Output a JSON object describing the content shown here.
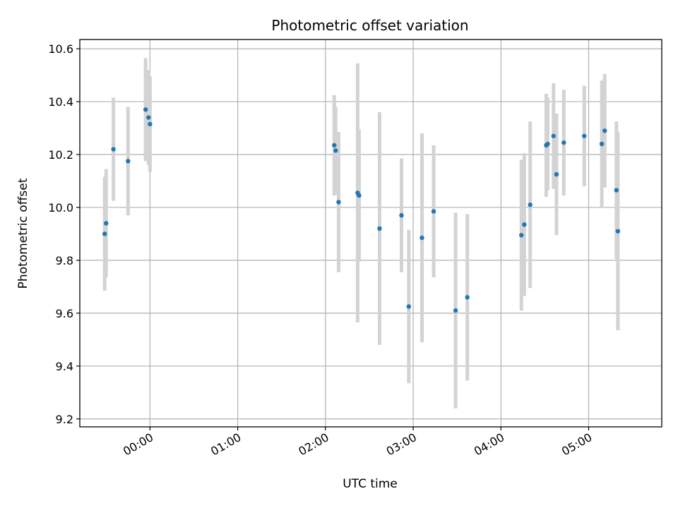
{
  "chart_data": {
    "type": "scatter",
    "title": "Photometric offset variation",
    "xlabel": "UTC time",
    "ylabel": "Photometric offset",
    "xlim": [
      "23:12",
      "05:50"
    ],
    "ylim": [
      9.17,
      10.635
    ],
    "xticks": [
      "00:00",
      "01:00",
      "02:00",
      "03:00",
      "04:00",
      "05:00"
    ],
    "yticks": [
      9.2,
      9.4,
      9.6,
      9.8,
      10.0,
      10.2,
      10.4,
      10.6
    ],
    "grid": true,
    "legend": "none",
    "colors": {
      "points": "#1f77b4",
      "errorbars": "#d3d3d3",
      "grid": "#b0b0b0"
    },
    "series": [
      {
        "x": [
          "23:29",
          "23:30",
          "23:35",
          "23:45",
          "23:57",
          "23:59",
          "00:00",
          "02:06",
          "02:07",
          "02:09",
          "02:22",
          "02:23",
          "02:37",
          "02:52",
          "02:57",
          "03:06",
          "03:14",
          "03:29",
          "03:37",
          "04:14",
          "04:16",
          "04:20",
          "04:31",
          "04:32",
          "04:36",
          "04:38",
          "04:43",
          "04:57",
          "05:09",
          "05:11",
          "05:19",
          "05:20"
        ],
        "y": [
          9.9,
          9.94,
          10.22,
          10.175,
          10.37,
          10.34,
          10.315,
          10.235,
          10.215,
          10.02,
          10.055,
          10.045,
          9.92,
          9.97,
          9.625,
          9.885,
          9.985,
          9.61,
          9.66,
          9.895,
          9.935,
          10.01,
          10.235,
          10.24,
          10.27,
          10.125,
          10.245,
          10.27,
          10.24,
          10.29,
          10.065,
          9.91
        ],
        "yerr": [
          0.215,
          0.205,
          0.195,
          0.205,
          0.195,
          0.18,
          0.18,
          0.19,
          0.165,
          0.265,
          0.49,
          0.25,
          0.44,
          0.215,
          0.29,
          0.395,
          0.25,
          0.37,
          0.315,
          0.285,
          0.27,
          0.315,
          0.195,
          0.175,
          0.2,
          0.23,
          0.2,
          0.19,
          0.24,
          0.215,
          0.26,
          0.375
        ]
      }
    ]
  }
}
